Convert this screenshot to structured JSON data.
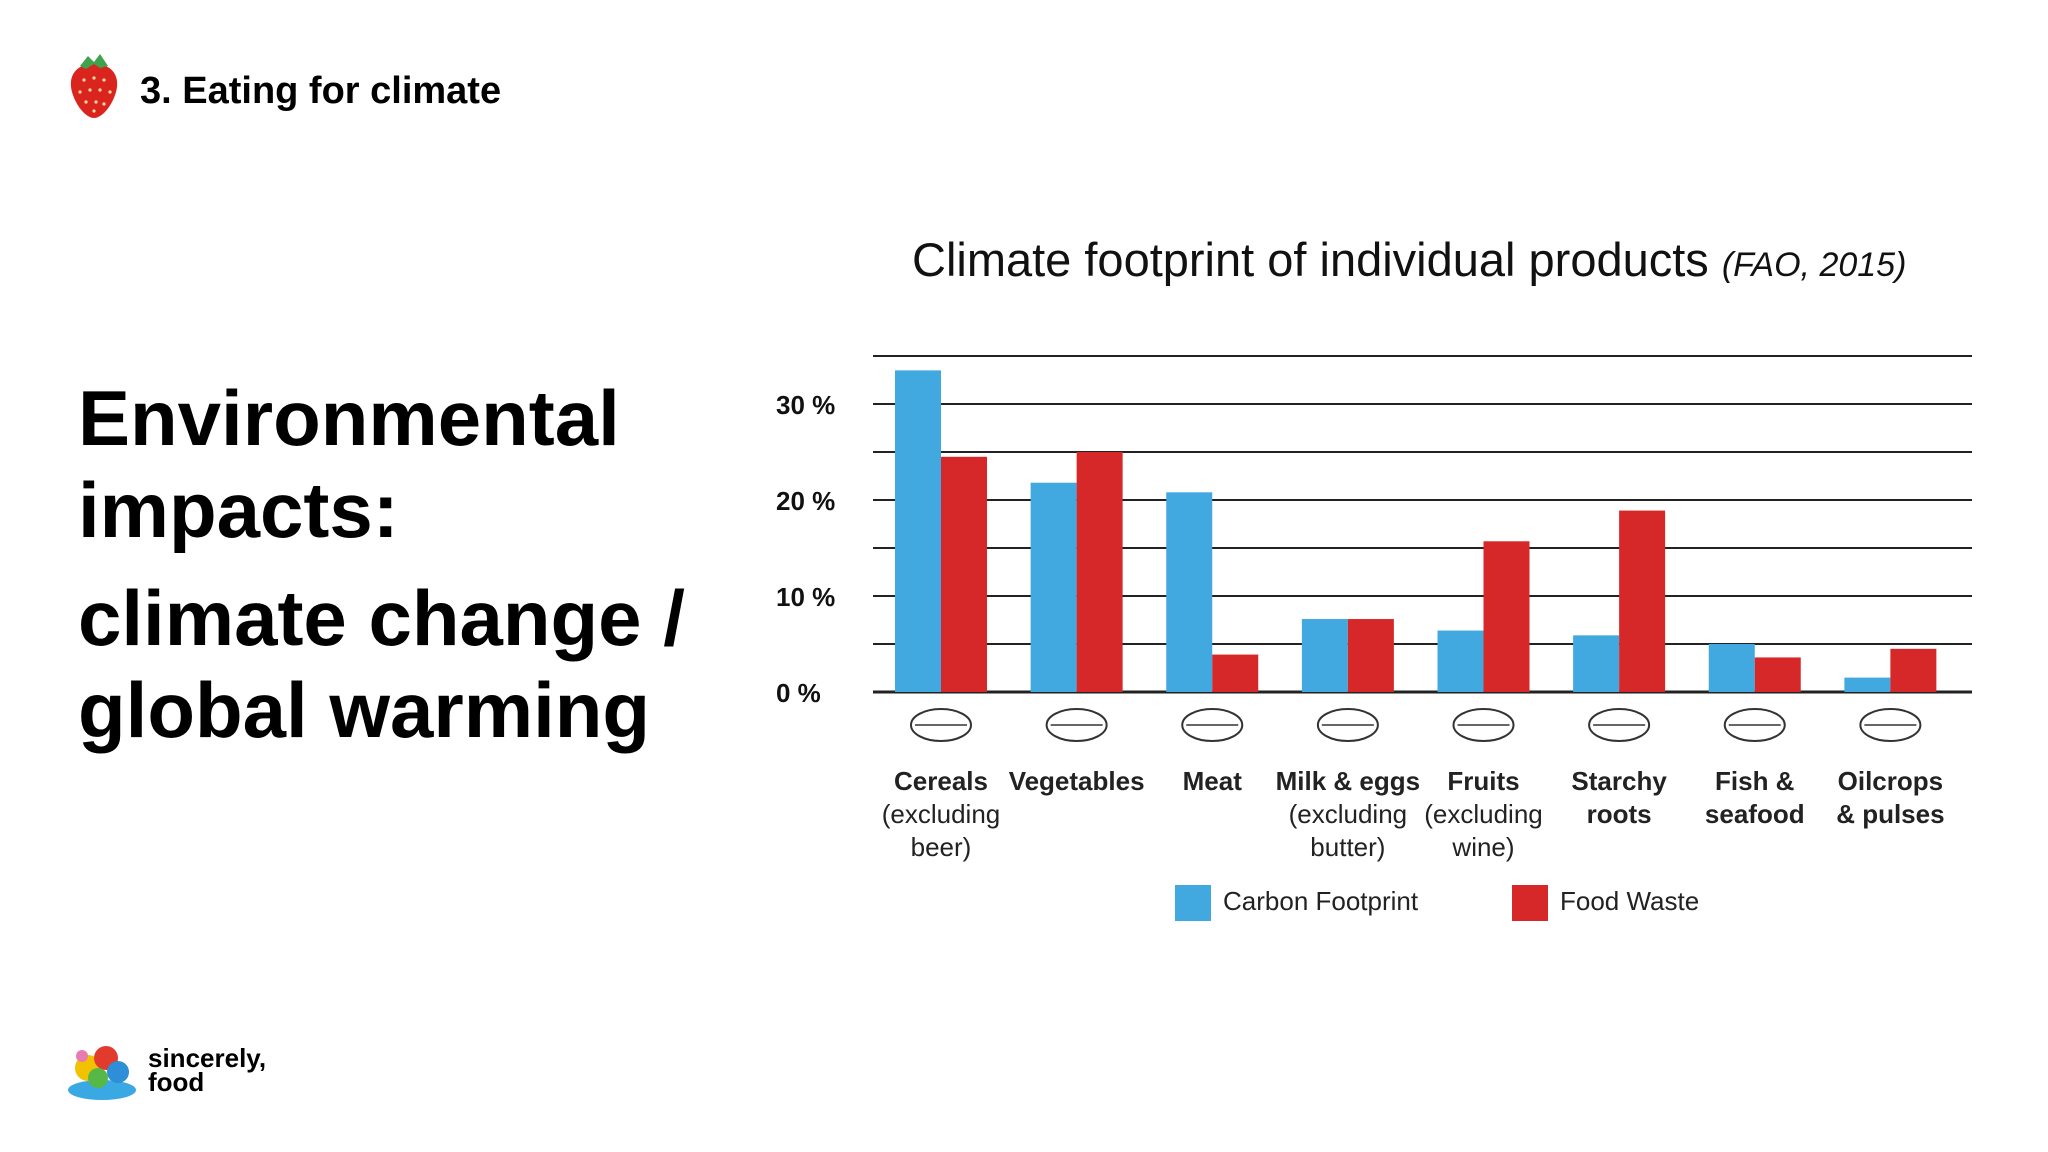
{
  "header": {
    "title": "3. Eating for climate",
    "icon": "strawberry-icon"
  },
  "main": {
    "heading_line1": "Environmental impacts:",
    "heading_line2": "climate change / global warming"
  },
  "chart_title": {
    "text": "Climate footprint of individual products ",
    "source": "(FAO, 2015)"
  },
  "chart_data": {
    "type": "bar",
    "categories": [
      {
        "name": "Cereals",
        "note": [
          "(excluding",
          "beer)"
        ],
        "icon": "wheat-icon"
      },
      {
        "name": "Vegetables",
        "note": [],
        "icon": "lettuce-icon"
      },
      {
        "name": "Meat",
        "note": [],
        "icon": "ham-icon"
      },
      {
        "name": "Milk & eggs",
        "note": [
          "(excluding",
          "butter)"
        ],
        "icon": "milk-eggs-icon"
      },
      {
        "name": "Fruits",
        "note": [
          "(excluding",
          "wine)"
        ],
        "icon": "banana-apple-icon"
      },
      {
        "name": "Starchy",
        "name2": "roots",
        "note": [],
        "icon": "carrot-icon"
      },
      {
        "name": "Fish &",
        "name2": "seafood",
        "note": [],
        "icon": "fish-icon"
      },
      {
        "name": "Oilcrops",
        "name2": "& pulses",
        "note": [],
        "icon": "seeds-icon"
      }
    ],
    "series": [
      {
        "name": "Carbon Footprint",
        "color": "#41a8e0",
        "values": [
          33.5,
          21.8,
          20.8,
          7.6,
          6.4,
          5.9,
          5.0,
          1.5
        ]
      },
      {
        "name": "Food Waste",
        "color": "#d62828",
        "values": [
          24.5,
          25.0,
          3.9,
          7.6,
          15.7,
          18.9,
          3.6,
          4.5
        ]
      }
    ],
    "yticks": [
      "0 %",
      "10 %",
      "20 %",
      "30 %"
    ],
    "ytick_values": [
      0,
      10,
      20,
      30
    ],
    "ylim": [
      0,
      35
    ],
    "grid": true,
    "legend": "bottom"
  },
  "brand": {
    "line1": "sincerely,",
    "line2": "food"
  }
}
